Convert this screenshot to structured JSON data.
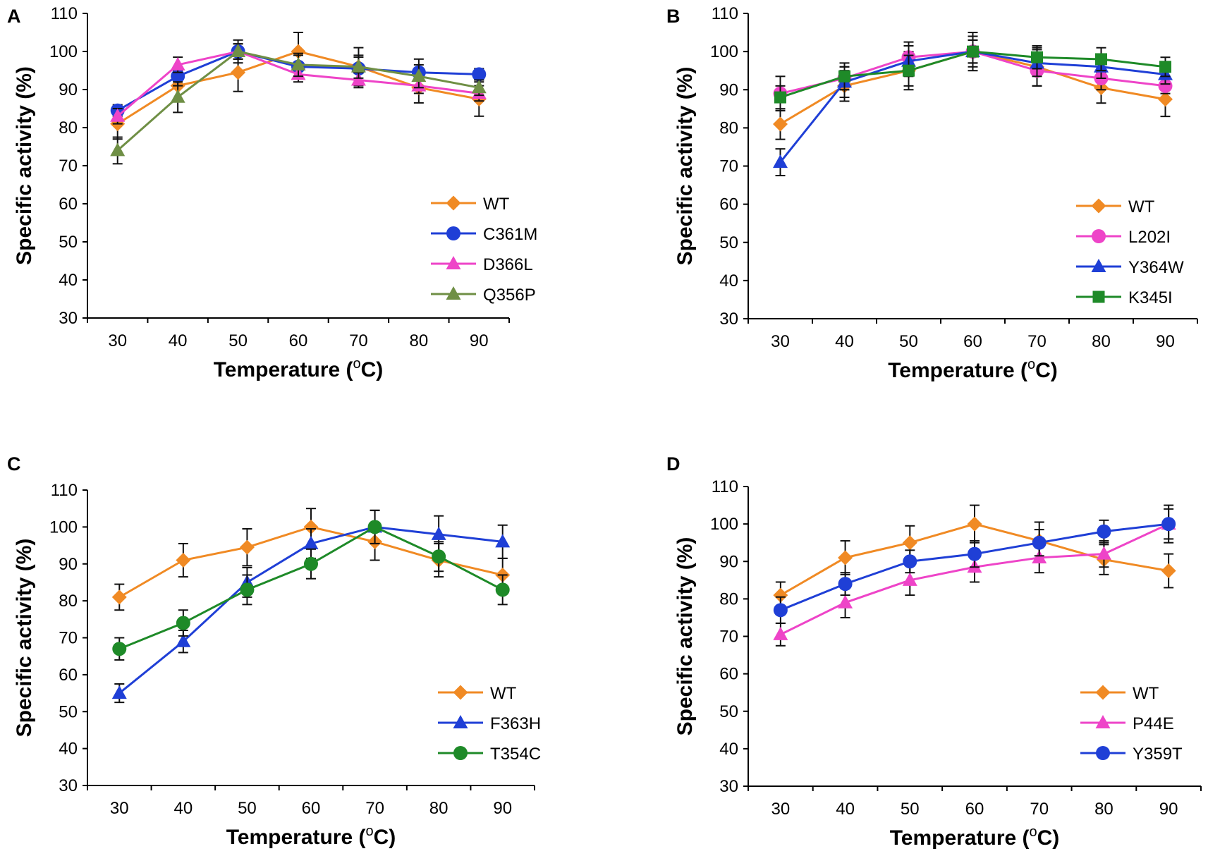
{
  "chart_data": [
    {
      "panel": "A",
      "type": "line",
      "xlabel": "Temperature (",
      "xlabel_sup": "o",
      "xlabel_unit": "C)",
      "ylabel": "Specific activity (%)",
      "ylim": [
        30,
        110
      ],
      "xticks": [
        "30",
        "40",
        "50",
        "60",
        "70",
        "80",
        "90"
      ],
      "yticks": [
        "30",
        "40",
        "50",
        "60",
        "70",
        "80",
        "90",
        "100",
        "110"
      ],
      "x": [
        30,
        40,
        50,
        60,
        70,
        80,
        90
      ],
      "legend_position": "bottom-right",
      "series": [
        {
          "name": "WT",
          "color": "#f08a24",
          "marker": "diamond",
          "values": [
            81,
            91,
            94.5,
            100,
            96,
            90.5,
            87.5
          ],
          "errors": [
            4,
            4,
            5,
            5,
            5,
            4,
            4.5
          ]
        },
        {
          "name": "C361M",
          "color": "#1f3fd6",
          "marker": "circle",
          "values": [
            84.5,
            93.5,
            100,
            96,
            95.5,
            94.5,
            94
          ],
          "errors": [
            1.5,
            2.5,
            2,
            3,
            3,
            3.5,
            1.5
          ]
        },
        {
          "name": "D366L",
          "color": "#ee44c8",
          "marker": "triangle",
          "values": [
            83,
            96.5,
            100,
            94,
            92.5,
            91,
            89
          ],
          "errors": [
            2,
            2,
            2,
            2,
            2,
            2,
            2
          ]
        },
        {
          "name": "Q356P",
          "color": "#6f8f45",
          "marker": "triangle",
          "values": [
            74,
            88,
            100,
            96.5,
            96,
            93.5,
            90.5
          ],
          "errors": [
            3.5,
            4,
            3,
            3,
            3,
            3,
            2
          ]
        }
      ]
    },
    {
      "panel": "B",
      "type": "line",
      "xlabel": "Temperature (",
      "xlabel_sup": "o",
      "xlabel_unit": "C)",
      "ylabel": "Specific activity (%)",
      "ylim": [
        30,
        110
      ],
      "xticks": [
        "30",
        "40",
        "50",
        "60",
        "70",
        "80",
        "90"
      ],
      "yticks": [
        "30",
        "40",
        "50",
        "60",
        "70",
        "80",
        "90",
        "100",
        "110"
      ],
      "x": [
        30,
        40,
        50,
        60,
        70,
        80,
        90
      ],
      "legend_position": "bottom-right",
      "series": [
        {
          "name": "WT",
          "color": "#f08a24",
          "marker": "diamond",
          "values": [
            81,
            91,
            95,
            100,
            96,
            90.5,
            87.5
          ],
          "errors": [
            4,
            4,
            5,
            5,
            5,
            4,
            4.5
          ]
        },
        {
          "name": "L202I",
          "color": "#ee44c8",
          "marker": "circle",
          "values": [
            89,
            93,
            98.5,
            100,
            95,
            93,
            91
          ],
          "errors": [
            4.5,
            3,
            4,
            4,
            4,
            3,
            2
          ]
        },
        {
          "name": "Y364W",
          "color": "#1f3fd6",
          "marker": "triangle",
          "values": [
            71,
            92,
            97.5,
            100,
            97,
            96,
            94
          ],
          "errors": [
            3.5,
            4,
            4,
            3,
            3.5,
            3,
            2.5
          ]
        },
        {
          "name": "K345I",
          "color": "#1e8a28",
          "marker": "square",
          "values": [
            88,
            93.5,
            95,
            100,
            98.5,
            98,
            96
          ],
          "errors": [
            3,
            3.5,
            4,
            3,
            3,
            3,
            2.5
          ]
        }
      ]
    },
    {
      "panel": "C",
      "type": "line",
      "xlabel": "Temperature (",
      "xlabel_sup": "o",
      "xlabel_unit": "C)",
      "ylabel": "Specific activity (%)",
      "ylim": [
        30,
        110
      ],
      "xticks": [
        "30",
        "40",
        "50",
        "60",
        "70",
        "80",
        "90"
      ],
      "yticks": [
        "30",
        "40",
        "50",
        "60",
        "70",
        "80",
        "90",
        "100",
        "110"
      ],
      "x": [
        30,
        40,
        50,
        60,
        70,
        80,
        90
      ],
      "legend_position": "bottom-right",
      "series": [
        {
          "name": "WT",
          "color": "#f08a24",
          "marker": "diamond",
          "values": [
            81,
            91,
            94.5,
            100,
            96,
            91,
            87
          ],
          "errors": [
            3.5,
            4.5,
            5,
            5,
            5,
            4.5,
            4.5
          ]
        },
        {
          "name": "F363H",
          "color": "#1f3fd6",
          "marker": "triangle",
          "values": [
            55,
            69,
            85,
            95.5,
            100,
            98,
            96
          ],
          "errors": [
            2.5,
            3,
            4,
            4,
            4.5,
            5,
            4.5
          ]
        },
        {
          "name": "T354C",
          "color": "#1e8a28",
          "marker": "circle",
          "values": [
            67,
            74,
            83,
            90,
            100,
            92,
            83
          ],
          "errors": [
            3,
            3.5,
            4,
            4,
            4.5,
            4,
            4
          ]
        }
      ]
    },
    {
      "panel": "D",
      "type": "line",
      "xlabel": "Temperature (",
      "xlabel_sup": "o",
      "xlabel_unit": "C)",
      "ylabel": "Specific activity (%)",
      "ylim": [
        30,
        110
      ],
      "xticks": [
        "30",
        "40",
        "50",
        "60",
        "70",
        "80",
        "90"
      ],
      "yticks": [
        "30",
        "40",
        "50",
        "60",
        "70",
        "80",
        "90",
        "100",
        "110"
      ],
      "x": [
        30,
        40,
        50,
        60,
        70,
        80,
        90
      ],
      "legend_position": "bottom-right",
      "series": [
        {
          "name": "WT",
          "color": "#f08a24",
          "marker": "diamond",
          "values": [
            81,
            91,
            95,
            100,
            95.5,
            90.5,
            87.5
          ],
          "errors": [
            3.5,
            4.5,
            4.5,
            5,
            5,
            4,
            4.5
          ]
        },
        {
          "name": "P44E",
          "color": "#ee44c8",
          "marker": "triangle",
          "values": [
            70.5,
            79,
            85,
            88.5,
            91,
            92,
            100
          ],
          "errors": [
            3,
            4,
            4,
            4,
            4,
            3.5,
            4
          ]
        },
        {
          "name": "Y359T",
          "color": "#1f3fd6",
          "marker": "circle",
          "values": [
            77,
            84,
            90,
            92,
            95,
            98,
            100
          ],
          "errors": [
            3.5,
            3,
            3,
            3.5,
            3.5,
            3,
            5
          ]
        }
      ]
    }
  ]
}
